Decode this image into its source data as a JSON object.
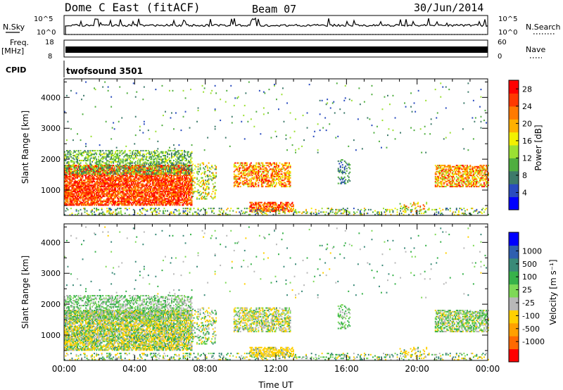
{
  "header": {
    "station": "Dome C East (fitACF)",
    "beam": "Beam 07",
    "date": "30/Jun/2014"
  },
  "summary": {
    "nsky_label": "N.Sky",
    "nsearch_label": "N.Search",
    "freq_label": "Freq.",
    "freq_unit": "[MHz]",
    "nave_label": "Nave",
    "cpid_label": "CPID",
    "cpid_value": "twofsound 3501",
    "noise_ticks": [
      "10^5",
      "10^0"
    ],
    "freq_ticks": [
      "18",
      "8"
    ],
    "nave_ticks": [
      "60",
      "0"
    ],
    "freq_mhz": 11,
    "nave_value": 30
  },
  "colors": {
    "power_scale": [
      "#0000ff",
      "#2a4cbf",
      "#3d7a6a",
      "#4fae3f",
      "#9be033",
      "#f2f000",
      "#ffb000",
      "#ff7a00",
      "#ff3a00",
      "#ff0000"
    ],
    "velocity_scale": [
      "#0000ff",
      "#2f5fb0",
      "#3a8a78",
      "#37b24a",
      "#7ed957",
      "#b8b8b8",
      "#ffd000",
      "#ffa000",
      "#ff6a00",
      "#ff0000"
    ]
  },
  "chart_data": [
    {
      "type": "heatmap",
      "name": "power",
      "xlabel": "",
      "ylabel": "Slant Range [km]",
      "xlim_hours": [
        0,
        24
      ],
      "ylim": [
        180,
        4600
      ],
      "yticks": [
        "1000",
        "2000",
        "3000",
        "4000"
      ],
      "colorbar_label": "Power [dB]",
      "colorbar_ticks": [
        "4",
        "8",
        "12",
        "16",
        "20",
        "24",
        "28"
      ],
      "colorbar_range": [
        0,
        30
      ]
    },
    {
      "type": "heatmap",
      "name": "velocity",
      "xlabel": "Time UT",
      "ylabel": "Slant Range [km]",
      "xlim_hours": [
        0,
        24
      ],
      "ylim": [
        180,
        4600
      ],
      "xticks": [
        "00:00",
        "04:00",
        "08:00",
        "12:00",
        "16:00",
        "20:00",
        "00:00"
      ],
      "yticks": [
        "1000",
        "2000",
        "3000",
        "4000"
      ],
      "colorbar_label": "Velocity [m s⁻¹]",
      "colorbar_ticks": [
        "1000",
        "500",
        "100",
        "25",
        "-25",
        "-100",
        "-500",
        "-1000"
      ],
      "colorbar_range": [
        -1000,
        1000
      ]
    }
  ]
}
